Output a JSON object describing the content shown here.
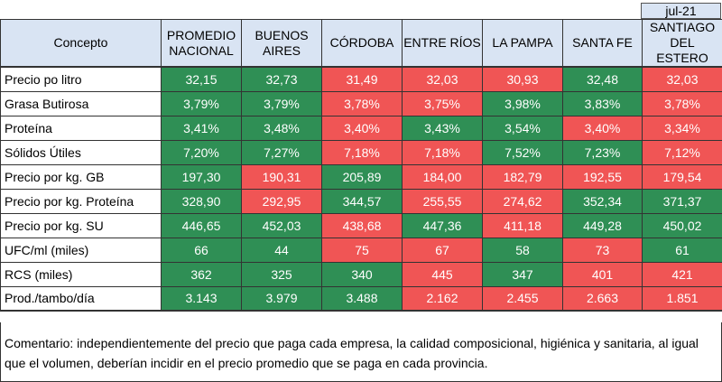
{
  "period": "jul-21",
  "colors": {
    "good": "#2f8f55",
    "bad": "#f05555",
    "header": "#d9e4f3"
  },
  "headers": [
    "Concepto",
    "PROMEDIO NACIONAL",
    "BUENOS AIRES",
    "CÓRDOBA",
    "ENTRE RÍOS",
    "LA PAMPA",
    "SANTA FE",
    "SANTIAGO DEL ESTERO"
  ],
  "rows": [
    {
      "label": "Precio po litro",
      "values": [
        "32,15",
        "32,73",
        "31,49",
        "32,03",
        "30,93",
        "32,48",
        "32,03"
      ],
      "status": [
        "g",
        "g",
        "r",
        "r",
        "r",
        "g",
        "r"
      ]
    },
    {
      "label": "Grasa Butirosa",
      "values": [
        "3,79%",
        "3,79%",
        "3,78%",
        "3,75%",
        "3,98%",
        "3,83%",
        "3,78%"
      ],
      "status": [
        "g",
        "g",
        "r",
        "r",
        "g",
        "g",
        "r"
      ]
    },
    {
      "label": "Proteína",
      "values": [
        "3,41%",
        "3,48%",
        "3,40%",
        "3,43%",
        "3,54%",
        "3,40%",
        "3,34%"
      ],
      "status": [
        "g",
        "g",
        "r",
        "g",
        "g",
        "r",
        "r"
      ]
    },
    {
      "label": "Sólidos Útiles",
      "values": [
        "7,20%",
        "7,27%",
        "7,18%",
        "7,18%",
        "7,52%",
        "7,23%",
        "7,12%"
      ],
      "status": [
        "g",
        "g",
        "r",
        "r",
        "g",
        "g",
        "r"
      ]
    },
    {
      "label": "Precio por kg. GB",
      "values": [
        "197,30",
        "190,31",
        "205,89",
        "184,00",
        "182,79",
        "192,55",
        "179,54"
      ],
      "status": [
        "g",
        "r",
        "g",
        "r",
        "r",
        "r",
        "r"
      ]
    },
    {
      "label": "Precio por kg. Proteína",
      "values": [
        "328,90",
        "292,95",
        "344,57",
        "255,55",
        "274,62",
        "352,34",
        "371,37"
      ],
      "status": [
        "g",
        "r",
        "g",
        "r",
        "r",
        "g",
        "g"
      ]
    },
    {
      "label": "Precio por kg. SU",
      "values": [
        "446,65",
        "452,03",
        "438,68",
        "447,36",
        "411,18",
        "449,28",
        "450,02"
      ],
      "status": [
        "g",
        "g",
        "r",
        "g",
        "r",
        "g",
        "g"
      ]
    },
    {
      "label": "UFC/ml (miles)",
      "values": [
        "66",
        "44",
        "75",
        "67",
        "58",
        "73",
        "61"
      ],
      "status": [
        "g",
        "g",
        "r",
        "r",
        "g",
        "r",
        "g"
      ]
    },
    {
      "label": "RCS (miles)",
      "values": [
        "362",
        "325",
        "340",
        "445",
        "347",
        "401",
        "421"
      ],
      "status": [
        "g",
        "g",
        "g",
        "r",
        "g",
        "r",
        "r"
      ]
    },
    {
      "label": "Prod./tambo/día",
      "values": [
        "3.143",
        "3.979",
        "3.488",
        "2.162",
        "2.455",
        "2.663",
        "1.851"
      ],
      "status": [
        "g",
        "g",
        "g",
        "r",
        "r",
        "r",
        "r"
      ]
    }
  ],
  "comment": "Comentario: independientemente del precio que paga cada empresa, la calidad composicional, higiénica y sanitaria, al igual que el volumen, deberían incidir en el precio promedio que se paga en cada provincia."
}
